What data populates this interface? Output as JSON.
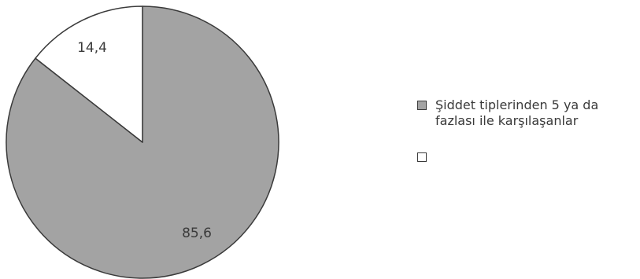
{
  "chart_data": {
    "type": "pie",
    "slices": [
      {
        "label": "85,6",
        "value": 85.6,
        "color": "#a3a3a3"
      },
      {
        "label": "14,4",
        "value": 14.4,
        "color": "#ffffff"
      }
    ],
    "legend": [
      {
        "text": "Şiddet tiplerinden 5 ya da fazlası ile karşılaşanlar",
        "color": "#a3a3a3"
      },
      {
        "text": "",
        "color": "#ffffff"
      }
    ],
    "legend_position": "right"
  },
  "colors": {
    "stroke": "#3a3a3a",
    "text": "#3a3a3a"
  }
}
